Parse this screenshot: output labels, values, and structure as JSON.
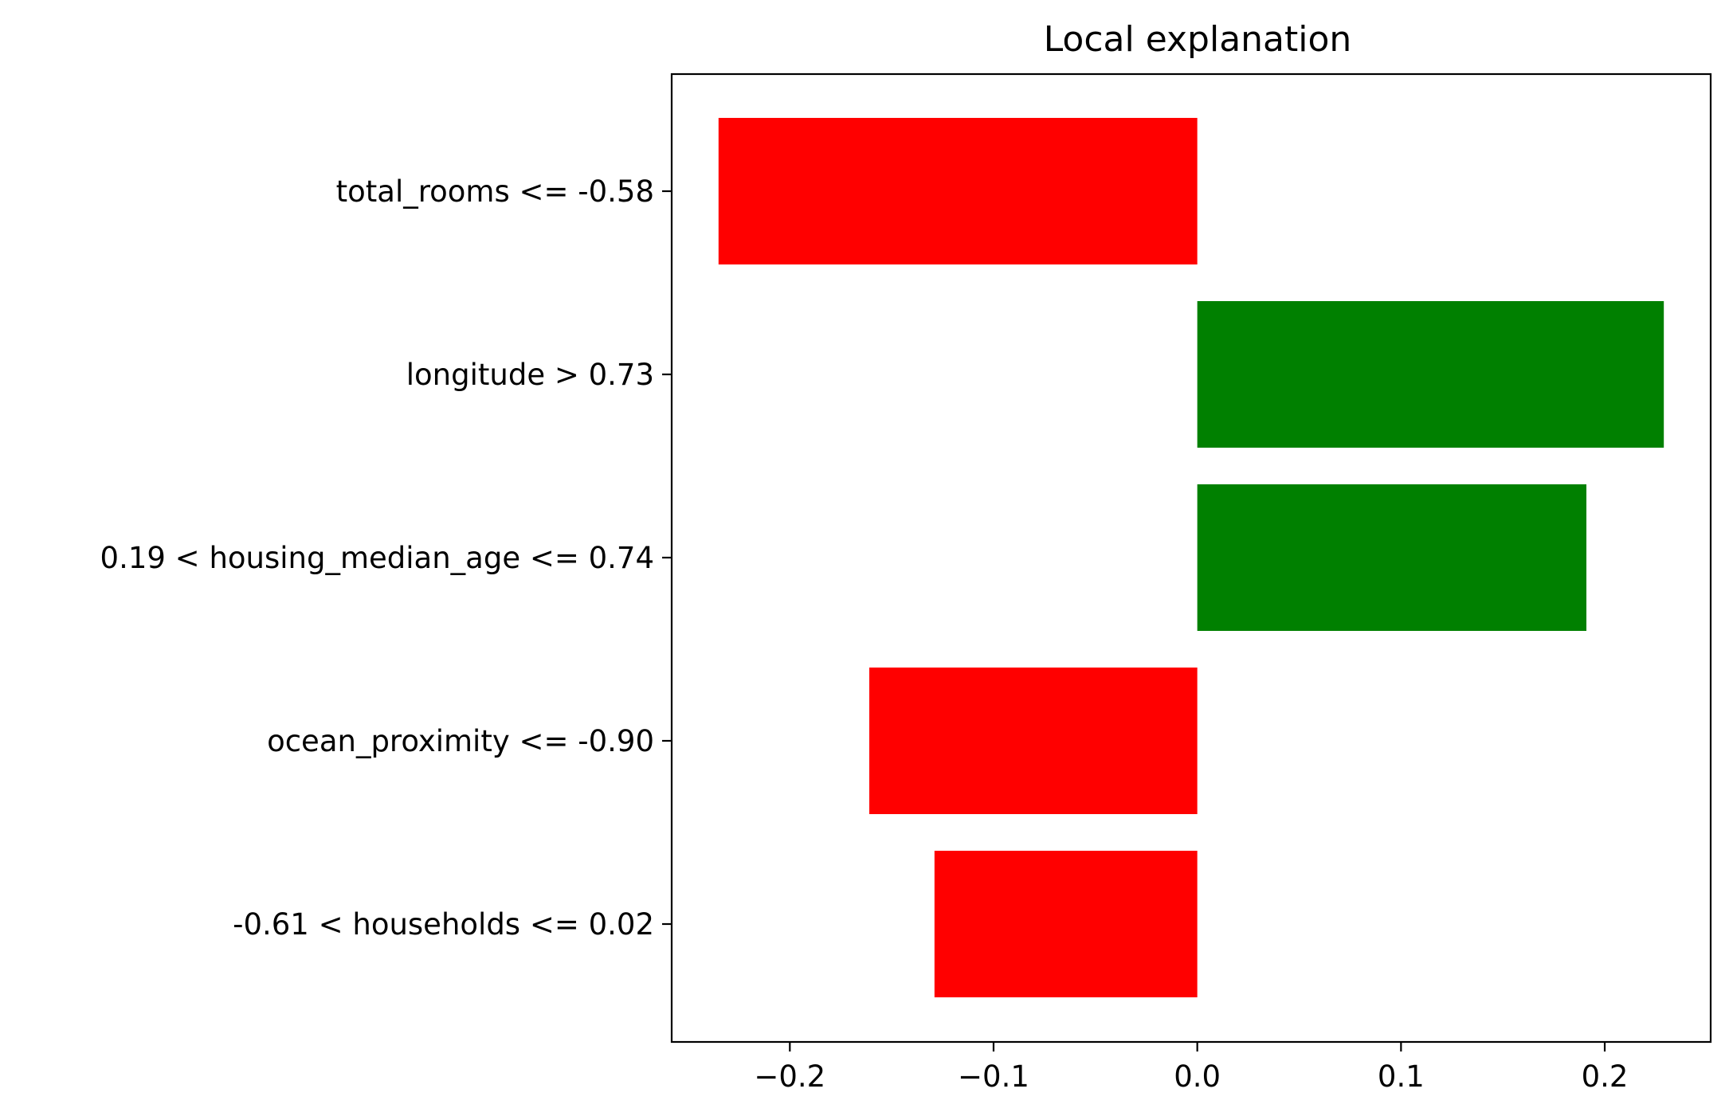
{
  "chart_data": {
    "type": "bar",
    "orientation": "horizontal",
    "title": "Local explanation",
    "xlabel": "",
    "ylabel": "",
    "categories": [
      "total_rooms <= -0.58",
      "longitude > 0.73",
      "0.19 < housing_median_age <= 0.74",
      "ocean_proximity <= -0.90",
      "-0.61 < households <= 0.02"
    ],
    "values": [
      -0.235,
      0.229,
      0.191,
      -0.161,
      -0.129
    ],
    "xlim": [
      -0.258,
      0.252
    ],
    "xticks": [
      -0.2,
      -0.1,
      0.0,
      0.1,
      0.2
    ],
    "xtick_labels": [
      "−0.2",
      "−0.1",
      "0.0",
      "0.1",
      "0.2"
    ],
    "grid": false,
    "colors": {
      "positive": "#008000",
      "negative": "#ff0000"
    }
  }
}
